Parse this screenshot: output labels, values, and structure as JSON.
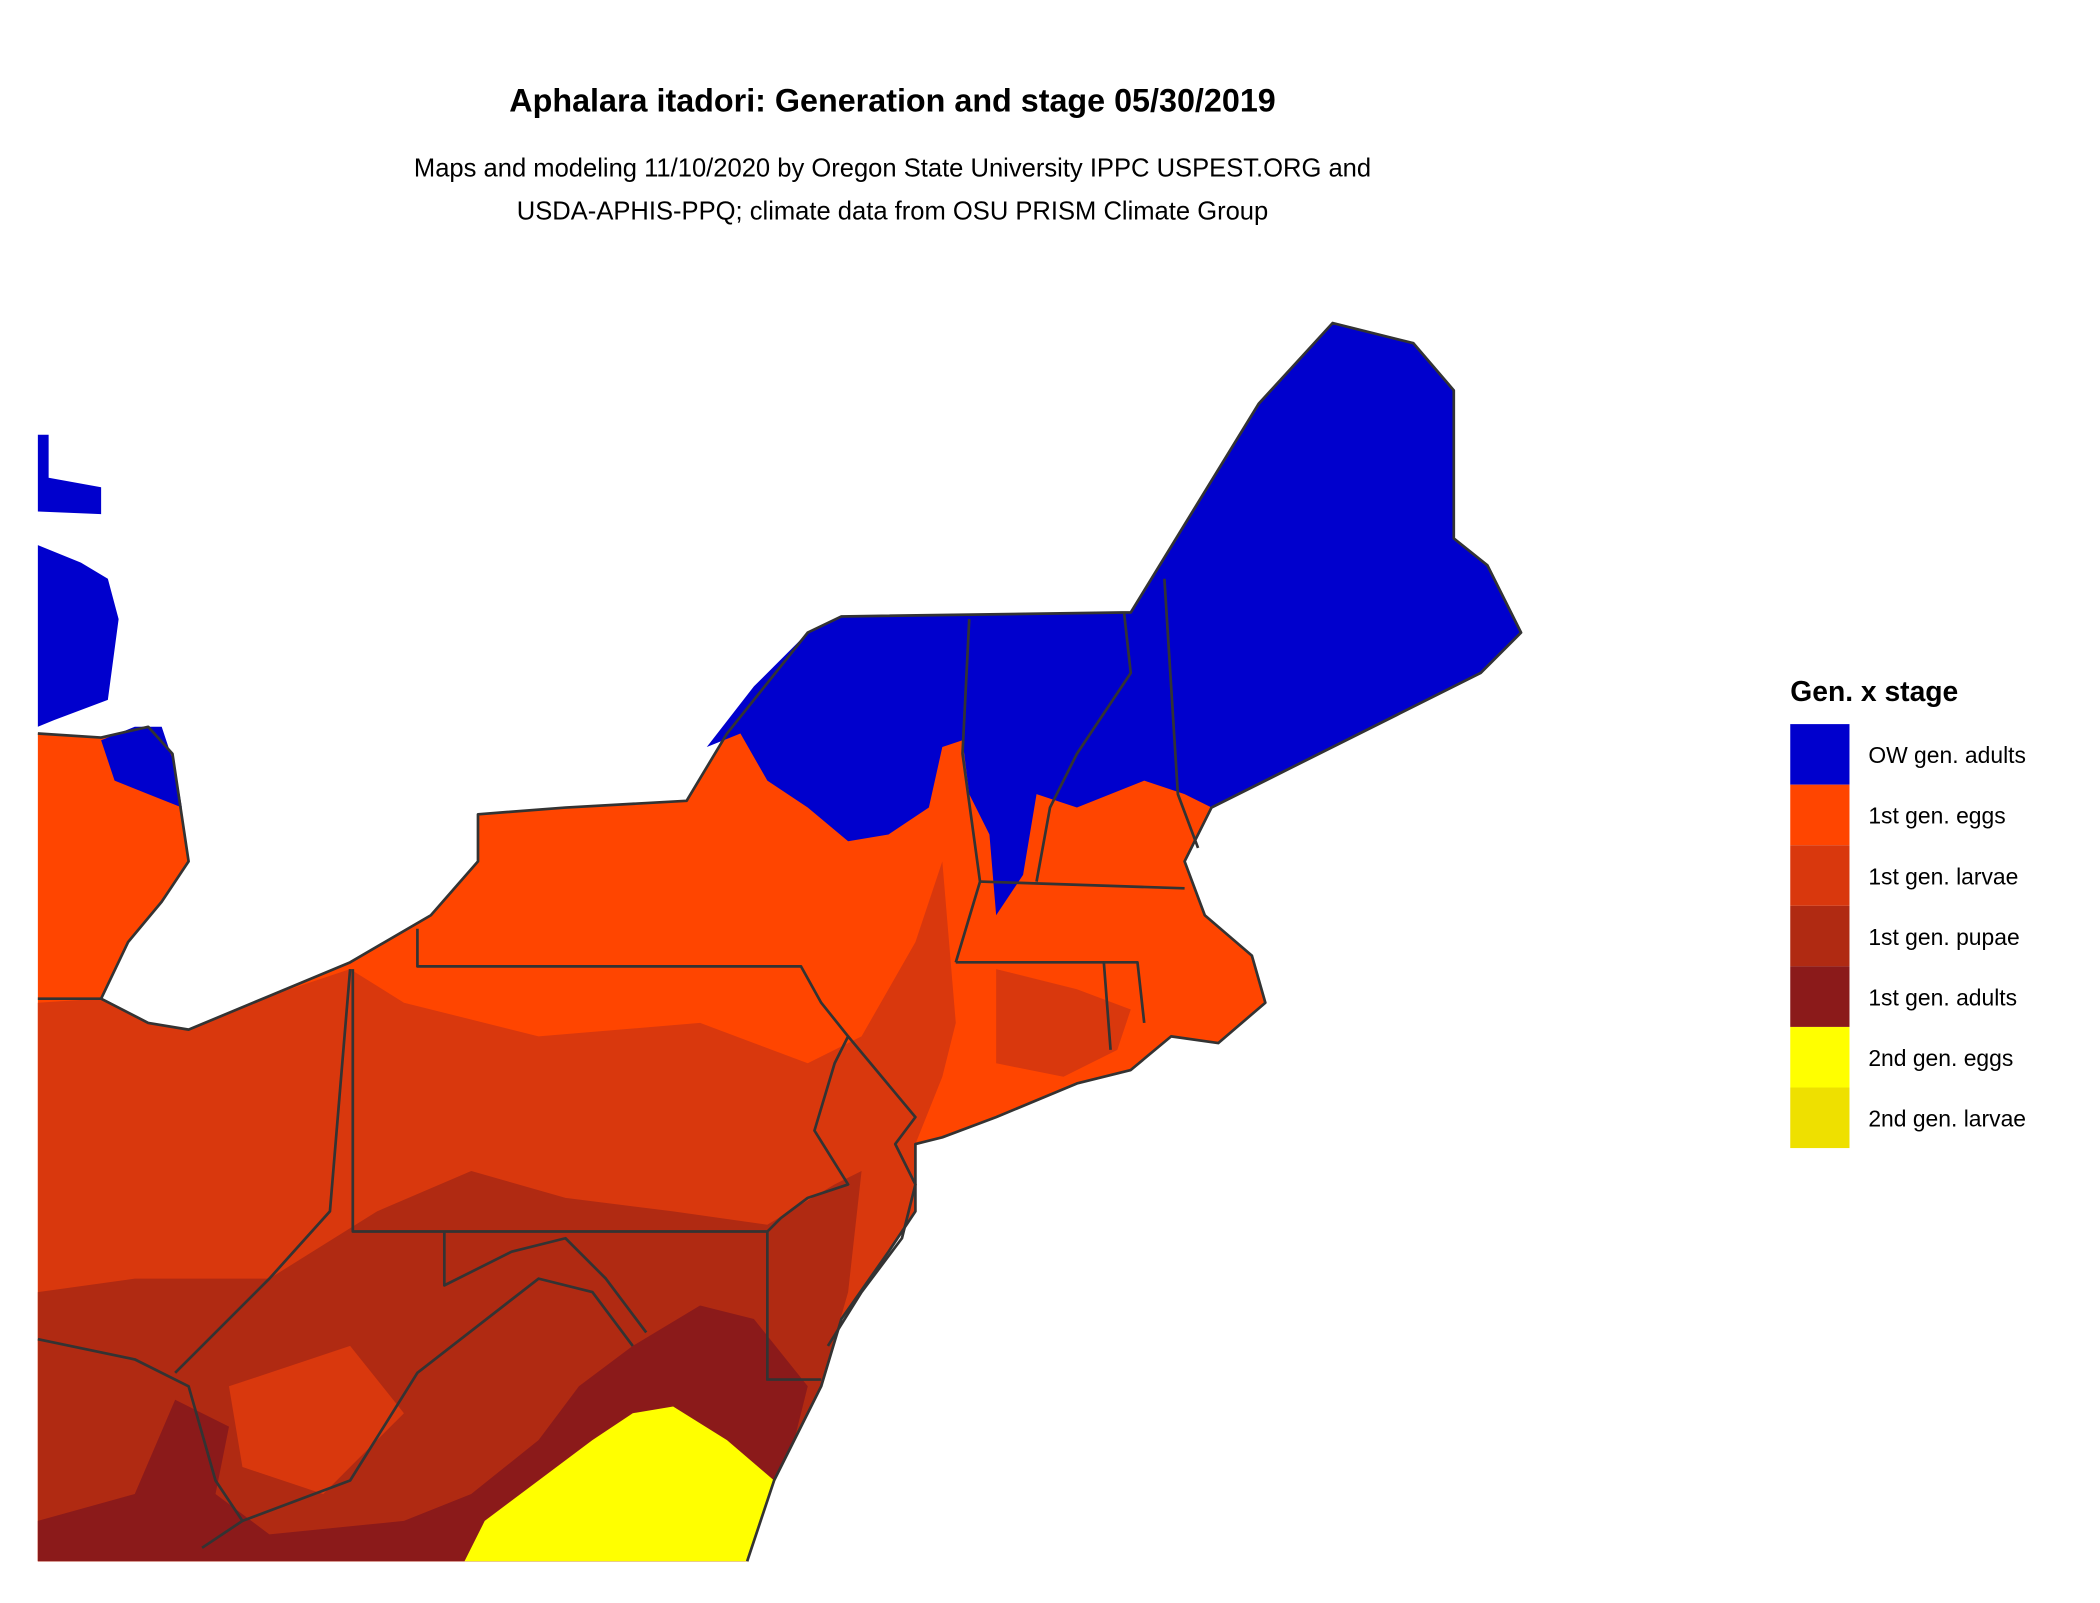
{
  "title": "Aphalara itadori: Generation and stage 05/30/2019",
  "subtitle_line1": "Maps and modeling 11/10/2020 by Oregon State University IPPC USPEST.ORG and",
  "subtitle_line2": "USDA-APHIS-PPQ; climate data from OSU PRISM Climate Group",
  "legend": {
    "title": "Gen. x stage",
    "items": [
      {
        "label": "OW gen. adults",
        "color": "#0000cd"
      },
      {
        "label": "1st gen. eggs",
        "color": "#ff4500"
      },
      {
        "label": "1st gen. larvae",
        "color": "#d9380d"
      },
      {
        "label": "1st gen. pupae",
        "color": "#b02a12"
      },
      {
        "label": "1st gen. adults",
        "color": "#8b1a1a"
      },
      {
        "label": "2nd gen. eggs",
        "color": "#ffff00"
      },
      {
        "label": "2nd gen. larvae",
        "color": "#eee000"
      }
    ]
  }
}
